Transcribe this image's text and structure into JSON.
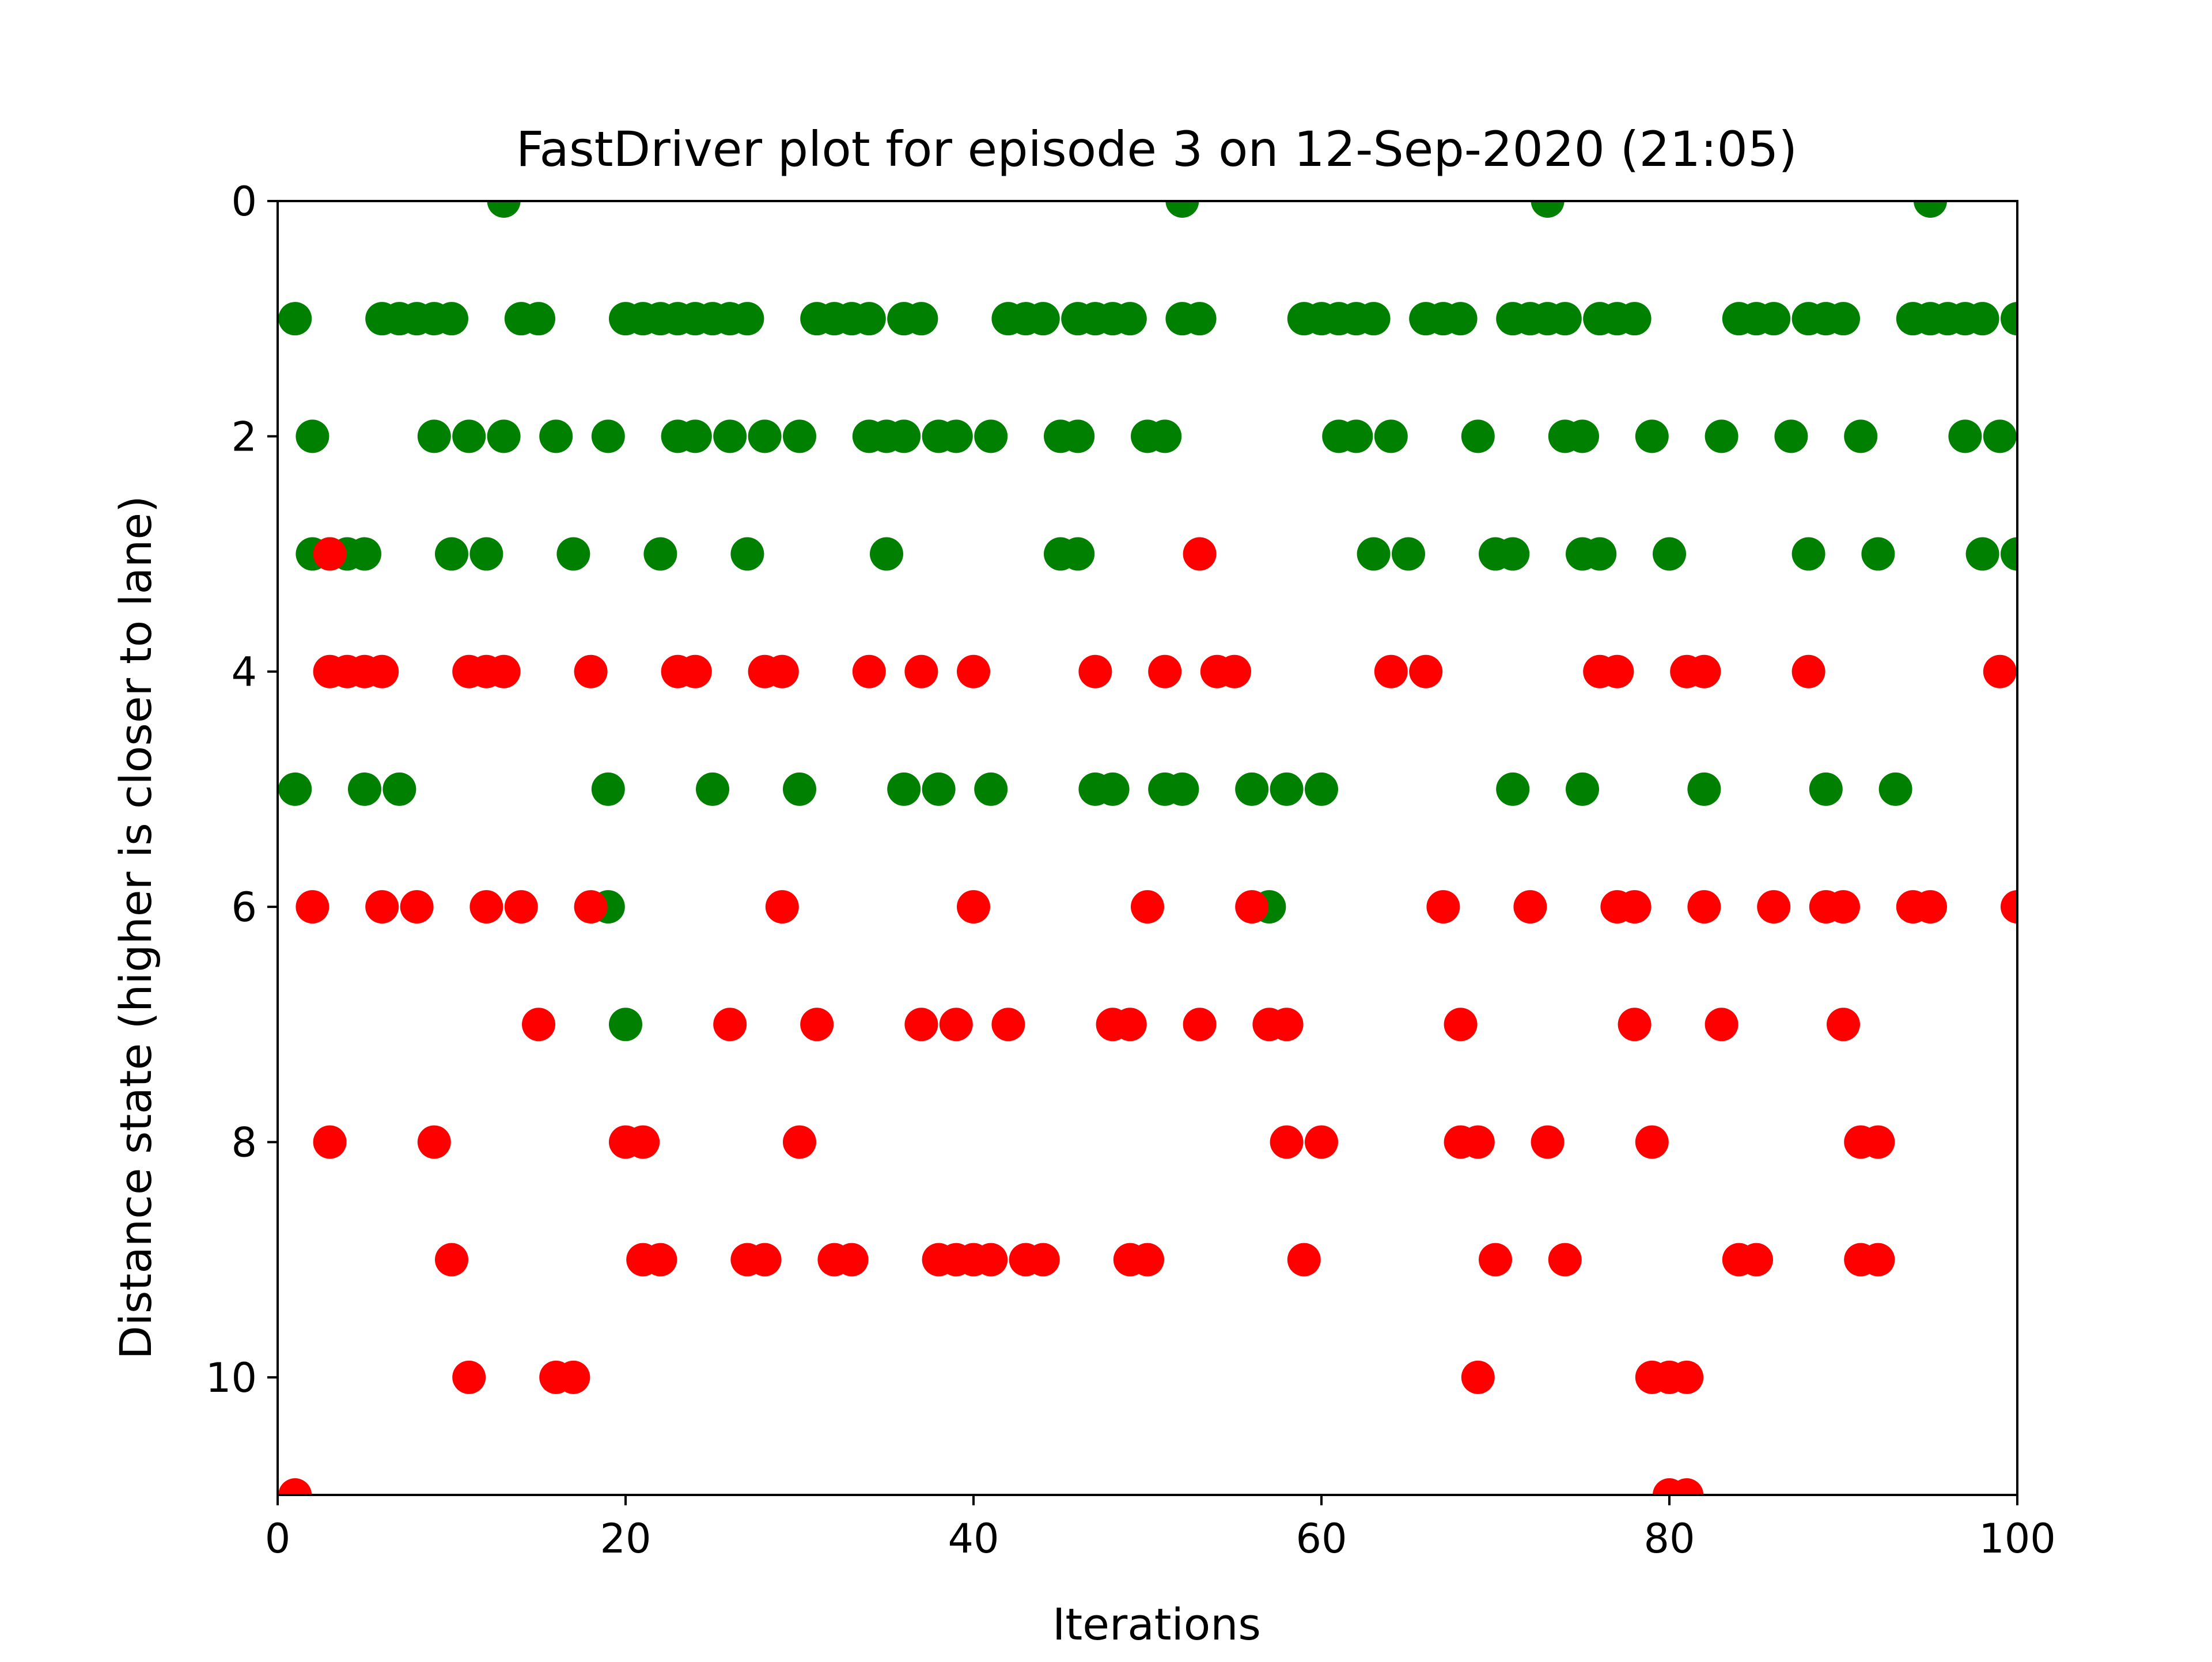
{
  "chart_data": {
    "type": "scatter",
    "title": "FastDriver plot for episode 3 on 12-Sep-2020 (21:05)",
    "xlabel": "Iterations",
    "ylabel": "Distance state (higher is closer to lane)",
    "xlim": [
      0,
      100
    ],
    "ylim": [
      11,
      0
    ],
    "y_inverted": true,
    "grid": false,
    "legend": "none",
    "x_ticks": [
      "0",
      "20",
      "40",
      "60",
      "80",
      "100"
    ],
    "y_ticks": [
      "0",
      "2",
      "4",
      "6",
      "8",
      "10"
    ],
    "series": [
      {
        "color": "#008000",
        "points": [
          [
            1,
            1
          ],
          [
            1,
            5
          ],
          [
            2,
            2
          ],
          [
            2,
            3
          ],
          [
            3,
            3
          ],
          [
            4,
            3
          ],
          [
            5,
            3
          ],
          [
            5,
            5
          ],
          [
            6,
            1
          ],
          [
            7,
            1
          ],
          [
            7,
            5
          ],
          [
            8,
            1
          ],
          [
            9,
            1
          ],
          [
            9,
            2
          ],
          [
            10,
            1
          ],
          [
            10,
            3
          ],
          [
            11,
            2
          ],
          [
            12,
            3
          ],
          [
            13,
            0
          ],
          [
            13,
            2
          ],
          [
            14,
            1
          ],
          [
            15,
            1
          ],
          [
            16,
            2
          ],
          [
            17,
            3
          ],
          [
            19,
            2
          ],
          [
            19,
            5
          ],
          [
            19,
            6
          ],
          [
            20,
            1
          ],
          [
            20,
            7
          ],
          [
            21,
            1
          ],
          [
            22,
            1
          ],
          [
            22,
            3
          ],
          [
            23,
            1
          ],
          [
            23,
            2
          ],
          [
            24,
            1
          ],
          [
            24,
            2
          ],
          [
            25,
            1
          ],
          [
            25,
            5
          ],
          [
            26,
            1
          ],
          [
            26,
            2
          ],
          [
            27,
            1
          ],
          [
            27,
            3
          ],
          [
            28,
            2
          ],
          [
            30,
            2
          ],
          [
            30,
            5
          ],
          [
            31,
            1
          ],
          [
            32,
            1
          ],
          [
            33,
            1
          ],
          [
            34,
            1
          ],
          [
            34,
            2
          ],
          [
            35,
            2
          ],
          [
            35,
            3
          ],
          [
            36,
            1
          ],
          [
            36,
            2
          ],
          [
            36,
            5
          ],
          [
            37,
            1
          ],
          [
            38,
            2
          ],
          [
            38,
            5
          ],
          [
            39,
            2
          ],
          [
            41,
            2
          ],
          [
            41,
            5
          ],
          [
            42,
            1
          ],
          [
            43,
            1
          ],
          [
            44,
            1
          ],
          [
            45,
            2
          ],
          [
            45,
            3
          ],
          [
            46,
            1
          ],
          [
            46,
            2
          ],
          [
            46,
            3
          ],
          [
            47,
            1
          ],
          [
            47,
            5
          ],
          [
            48,
            1
          ],
          [
            48,
            5
          ],
          [
            49,
            1
          ],
          [
            50,
            2
          ],
          [
            51,
            2
          ],
          [
            51,
            5
          ],
          [
            52,
            0
          ],
          [
            52,
            1
          ],
          [
            52,
            5
          ],
          [
            53,
            1
          ],
          [
            56,
            5
          ],
          [
            57,
            6
          ],
          [
            58,
            5
          ],
          [
            59,
            1
          ],
          [
            60,
            1
          ],
          [
            60,
            5
          ],
          [
            61,
            1
          ],
          [
            61,
            2
          ],
          [
            62,
            1
          ],
          [
            62,
            2
          ],
          [
            63,
            1
          ],
          [
            63,
            3
          ],
          [
            64,
            2
          ],
          [
            65,
            3
          ],
          [
            66,
            1
          ],
          [
            67,
            1
          ],
          [
            68,
            1
          ],
          [
            69,
            2
          ],
          [
            70,
            3
          ],
          [
            71,
            1
          ],
          [
            71,
            3
          ],
          [
            71,
            5
          ],
          [
            72,
            1
          ],
          [
            73,
            0
          ],
          [
            73,
            1
          ],
          [
            74,
            1
          ],
          [
            74,
            2
          ],
          [
            75,
            2
          ],
          [
            75,
            3
          ],
          [
            75,
            5
          ],
          [
            76,
            1
          ],
          [
            76,
            3
          ],
          [
            77,
            1
          ],
          [
            78,
            1
          ],
          [
            79,
            2
          ],
          [
            80,
            3
          ],
          [
            82,
            5
          ],
          [
            83,
            2
          ],
          [
            84,
            1
          ],
          [
            85,
            1
          ],
          [
            86,
            1
          ],
          [
            87,
            2
          ],
          [
            88,
            1
          ],
          [
            88,
            3
          ],
          [
            89,
            1
          ],
          [
            89,
            5
          ],
          [
            90,
            1
          ],
          [
            91,
            2
          ],
          [
            92,
            3
          ],
          [
            93,
            5
          ],
          [
            94,
            1
          ],
          [
            95,
            0
          ],
          [
            95,
            1
          ],
          [
            96,
            1
          ],
          [
            97,
            1
          ],
          [
            97,
            2
          ],
          [
            98,
            1
          ],
          [
            98,
            3
          ],
          [
            99,
            2
          ],
          [
            100,
            1
          ],
          [
            100,
            3
          ]
        ]
      },
      {
        "color": "#ff0000",
        "points": [
          [
            1,
            11
          ],
          [
            2,
            6
          ],
          [
            3,
            3
          ],
          [
            3,
            4
          ],
          [
            3,
            8
          ],
          [
            4,
            4
          ],
          [
            5,
            4
          ],
          [
            6,
            4
          ],
          [
            6,
            6
          ],
          [
            8,
            6
          ],
          [
            9,
            8
          ],
          [
            10,
            9
          ],
          [
            11,
            4
          ],
          [
            11,
            10
          ],
          [
            12,
            4
          ],
          [
            12,
            6
          ],
          [
            13,
            4
          ],
          [
            14,
            6
          ],
          [
            15,
            7
          ],
          [
            16,
            10
          ],
          [
            17,
            10
          ],
          [
            18,
            4
          ],
          [
            18,
            6
          ],
          [
            20,
            8
          ],
          [
            21,
            8
          ],
          [
            21,
            9
          ],
          [
            22,
            9
          ],
          [
            23,
            4
          ],
          [
            24,
            4
          ],
          [
            26,
            7
          ],
          [
            27,
            9
          ],
          [
            28,
            4
          ],
          [
            28,
            9
          ],
          [
            29,
            4
          ],
          [
            29,
            6
          ],
          [
            30,
            8
          ],
          [
            31,
            7
          ],
          [
            32,
            9
          ],
          [
            33,
            9
          ],
          [
            34,
            4
          ],
          [
            37,
            4
          ],
          [
            37,
            7
          ],
          [
            38,
            9
          ],
          [
            39,
            7
          ],
          [
            39,
            9
          ],
          [
            40,
            4
          ],
          [
            40,
            6
          ],
          [
            40,
            9
          ],
          [
            41,
            9
          ],
          [
            42,
            7
          ],
          [
            43,
            9
          ],
          [
            44,
            9
          ],
          [
            47,
            4
          ],
          [
            48,
            7
          ],
          [
            49,
            7
          ],
          [
            49,
            9
          ],
          [
            50,
            6
          ],
          [
            50,
            9
          ],
          [
            51,
            4
          ],
          [
            53,
            3
          ],
          [
            53,
            7
          ],
          [
            54,
            4
          ],
          [
            55,
            4
          ],
          [
            56,
            6
          ],
          [
            57,
            7
          ],
          [
            58,
            7
          ],
          [
            58,
            8
          ],
          [
            59,
            9
          ],
          [
            60,
            8
          ],
          [
            64,
            4
          ],
          [
            66,
            4
          ],
          [
            67,
            6
          ],
          [
            68,
            7
          ],
          [
            68,
            8
          ],
          [
            69,
            8
          ],
          [
            69,
            10
          ],
          [
            70,
            9
          ],
          [
            72,
            6
          ],
          [
            73,
            8
          ],
          [
            74,
            9
          ],
          [
            76,
            4
          ],
          [
            77,
            4
          ],
          [
            77,
            6
          ],
          [
            78,
            6
          ],
          [
            78,
            7
          ],
          [
            79,
            8
          ],
          [
            79,
            10
          ],
          [
            80,
            10
          ],
          [
            80,
            11
          ],
          [
            81,
            4
          ],
          [
            81,
            10
          ],
          [
            81,
            11
          ],
          [
            82,
            4
          ],
          [
            82,
            6
          ],
          [
            83,
            7
          ],
          [
            84,
            9
          ],
          [
            85,
            9
          ],
          [
            86,
            6
          ],
          [
            88,
            4
          ],
          [
            89,
            6
          ],
          [
            90,
            6
          ],
          [
            90,
            7
          ],
          [
            91,
            8
          ],
          [
            91,
            9
          ],
          [
            92,
            8
          ],
          [
            92,
            9
          ],
          [
            94,
            6
          ],
          [
            95,
            6
          ],
          [
            99,
            4
          ],
          [
            100,
            6
          ]
        ]
      }
    ]
  }
}
